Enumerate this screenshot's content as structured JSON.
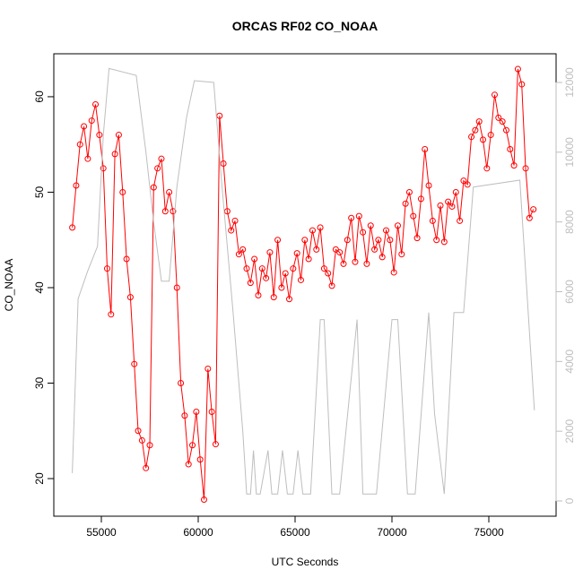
{
  "chart_data": {
    "type": "line",
    "title": "ORCAS RF02 CO_NOAA",
    "x_label": "UTC Seconds",
    "y_label": "CO_NOAA",
    "xlim": [
      52546,
      78472
    ],
    "ylim": [
      16.06,
      64.5
    ],
    "y2lim": [
      -437,
      12822
    ],
    "xticks": [
      55000,
      60000,
      65000,
      70000,
      75000
    ],
    "yticks": [
      20,
      30,
      40,
      50,
      60
    ],
    "y2ticks": [
      0,
      2000,
      4000,
      6000,
      8000,
      10000,
      12000
    ],
    "series": [
      {
        "color": "#ff0000",
        "markers": true,
        "x": [
          53500,
          53700,
          53900,
          54100,
          54300,
          54500,
          54700,
          54900,
          55100,
          55300,
          55500,
          55700,
          55900,
          56100,
          56300,
          56500,
          56700,
          56900,
          57100,
          57300,
          57500,
          57700,
          57900,
          58100,
          58300,
          58500,
          58700,
          58900,
          59100,
          59300,
          59500,
          59700,
          59900,
          60100,
          60300,
          60500,
          60700,
          60900,
          61100,
          61300,
          61500,
          61700,
          61900,
          62100,
          62300,
          62500,
          62700,
          62900,
          63100,
          63300,
          63500,
          63700,
          63900,
          64100,
          64300,
          64500,
          64700,
          64900,
          65100,
          65300,
          65500,
          65700,
          65900,
          66100,
          66300,
          66500,
          66700,
          66900,
          67100,
          67300,
          67500,
          67700,
          67900,
          68100,
          68300,
          68500,
          68700,
          68900,
          69100,
          69300,
          69500,
          69700,
          69900,
          70100,
          70300,
          70500,
          70700,
          70900,
          71100,
          71300,
          71500,
          71700,
          71900,
          72100,
          72300,
          72500,
          72700,
          72900,
          73100,
          73300,
          73500,
          73700,
          73900,
          74100,
          74300,
          74500,
          74700,
          74900,
          75100,
          75300,
          75500,
          75700,
          75900,
          76100,
          76300,
          76500,
          76700,
          76900,
          77100,
          77300
        ],
        "values": [
          46.3,
          50.7,
          55,
          56.9,
          53.5,
          57.5,
          59.2,
          56,
          52.5,
          42,
          37.2,
          54,
          56,
          50,
          43,
          39,
          32,
          25,
          24,
          21.1,
          23.5,
          50.5,
          52.5,
          53.5,
          48,
          50,
          48,
          40,
          30,
          26.6,
          21.5,
          23.5,
          27,
          22,
          17.8,
          31.5,
          27,
          23.6,
          58,
          53,
          48,
          46,
          47,
          43.5,
          44,
          42,
          40.5,
          43,
          39.2,
          42,
          41,
          43.7,
          39,
          45,
          40,
          41.5,
          38.8,
          42,
          43.6,
          40.8,
          45,
          43,
          46,
          44,
          46.3,
          42,
          41.5,
          40.2,
          44,
          43.7,
          42.5,
          45,
          47.3,
          42.7,
          47.5,
          45.8,
          42.5,
          46.5,
          44,
          45,
          43.2,
          46,
          45,
          41.6,
          46.5,
          43.5,
          48.8,
          50,
          47.5,
          45.2,
          49.3,
          54.5,
          50.7,
          47,
          45,
          48.6,
          44.8,
          49,
          48.5,
          50,
          47,
          51.2,
          50.8,
          55.8,
          56.5,
          57.4,
          55.5,
          52.5,
          56,
          60.2,
          57.8,
          57.4,
          56.5,
          54.5,
          52.8,
          62.9,
          61.3,
          52.5,
          47.3,
          48.2
        ]
      },
      {
        "color": "#bebebe",
        "axis": "y2",
        "markers": false,
        "x": [
          53500,
          53800,
          54300,
          54800,
          55100,
          55400,
          56800,
          57300,
          57700,
          58100,
          58500,
          58900,
          59400,
          59800,
          60800,
          61200,
          61800,
          62300,
          62500,
          62700,
          62850,
          63000,
          63200,
          63600,
          63800,
          64100,
          64350,
          64600,
          64900,
          65150,
          65400,
          65800,
          66300,
          66500,
          66900,
          67300,
          68200,
          68500,
          69200,
          70000,
          70300,
          70800,
          71200,
          71900,
          72200,
          72700,
          73200,
          73700,
          74200,
          76600,
          77350
        ],
        "values": [
          800,
          5800,
          6600,
          7300,
          10500,
          12400,
          12200,
          10000,
          8000,
          6300,
          6300,
          9000,
          11000,
          12050,
          12000,
          9200,
          5400,
          2000,
          200,
          200,
          1450,
          200,
          200,
          1450,
          200,
          200,
          1450,
          200,
          200,
          1450,
          200,
          200,
          5200,
          5200,
          200,
          200,
          5200,
          200,
          200,
          5200,
          5200,
          200,
          200,
          5400,
          2500,
          200,
          5400,
          5400,
          9000,
          9200,
          2600
        ]
      }
    ]
  }
}
